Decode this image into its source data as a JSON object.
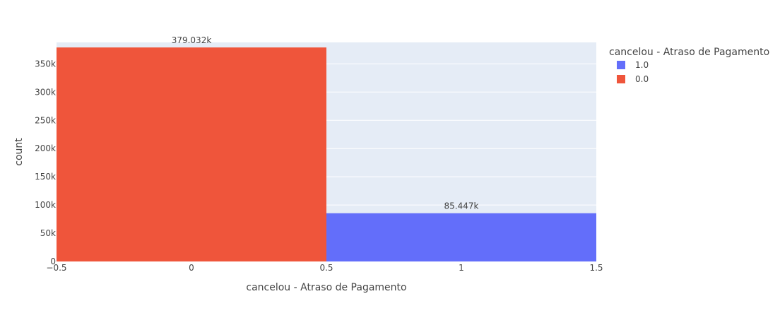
{
  "chart_data": {
    "type": "bar",
    "xlabel": "cancelou - Atraso de Pagamento",
    "ylabel": "count",
    "xlim": [
      -0.5,
      1.5
    ],
    "ylim": [
      0,
      388000
    ],
    "x_ticks": [
      {
        "value": -0.5,
        "label": "−0.5"
      },
      {
        "value": 0,
        "label": "0"
      },
      {
        "value": 0.5,
        "label": "0.5"
      },
      {
        "value": 1,
        "label": "1"
      },
      {
        "value": 1.5,
        "label": "1.5"
      }
    ],
    "y_ticks": [
      {
        "value": 0,
        "label": "0"
      },
      {
        "value": 50000,
        "label": "50k"
      },
      {
        "value": 100000,
        "label": "100k"
      },
      {
        "value": 150000,
        "label": "150k"
      },
      {
        "value": 200000,
        "label": "200k"
      },
      {
        "value": 250000,
        "label": "250k"
      },
      {
        "value": 300000,
        "label": "300k"
      },
      {
        "value": 350000,
        "label": "350k"
      }
    ],
    "grid": true,
    "legend": {
      "title": "cancelou - Atraso de Pagamento",
      "placement": "top-right"
    },
    "series": [
      {
        "name": "1.0",
        "color": "#636efa",
        "bars": [
          {
            "x": 1,
            "width": 1,
            "value": 85447,
            "label": "85.447k"
          }
        ]
      },
      {
        "name": "0.0",
        "color": "#ef553b",
        "bars": [
          {
            "x": 0,
            "width": 1,
            "value": 379032,
            "label": "379.032k"
          }
        ]
      }
    ]
  }
}
